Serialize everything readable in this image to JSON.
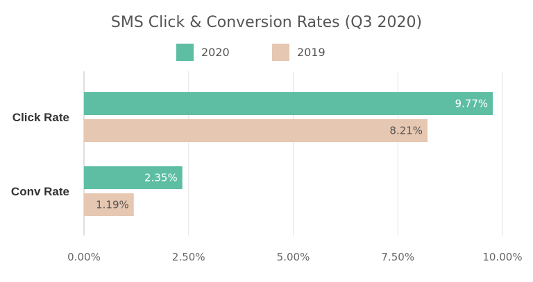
{
  "chart_data": {
    "type": "bar",
    "orientation": "horizontal",
    "title": "SMS Click & Conversion Rates (Q3 2020)",
    "categories": [
      "Click Rate",
      "Conv Rate"
    ],
    "series": [
      {
        "name": "2020",
        "values": [
          9.77,
          2.35
        ],
        "labels": [
          "9.77%",
          "2.35%"
        ],
        "color": "#5dbea3",
        "label_color": "#ffffff"
      },
      {
        "name": "2019",
        "values": [
          8.21,
          1.19
        ],
        "labels": [
          "8.21%",
          "1.19%"
        ],
        "color": "#e6c7b1",
        "label_color": "#555555"
      }
    ],
    "xlim": [
      0,
      10
    ],
    "xticks": [
      {
        "value": 0,
        "label": "0.00%"
      },
      {
        "value": 2.5,
        "label": "2.50%"
      },
      {
        "value": 5,
        "label": "5.00%"
      },
      {
        "value": 7.5,
        "label": "7.50%"
      },
      {
        "value": 10,
        "label": "10.00%"
      }
    ],
    "grid": "vertical",
    "legend_position": "top",
    "colors": {
      "grid": "#e2e2e2",
      "axis": "#bdbdbd"
    }
  }
}
